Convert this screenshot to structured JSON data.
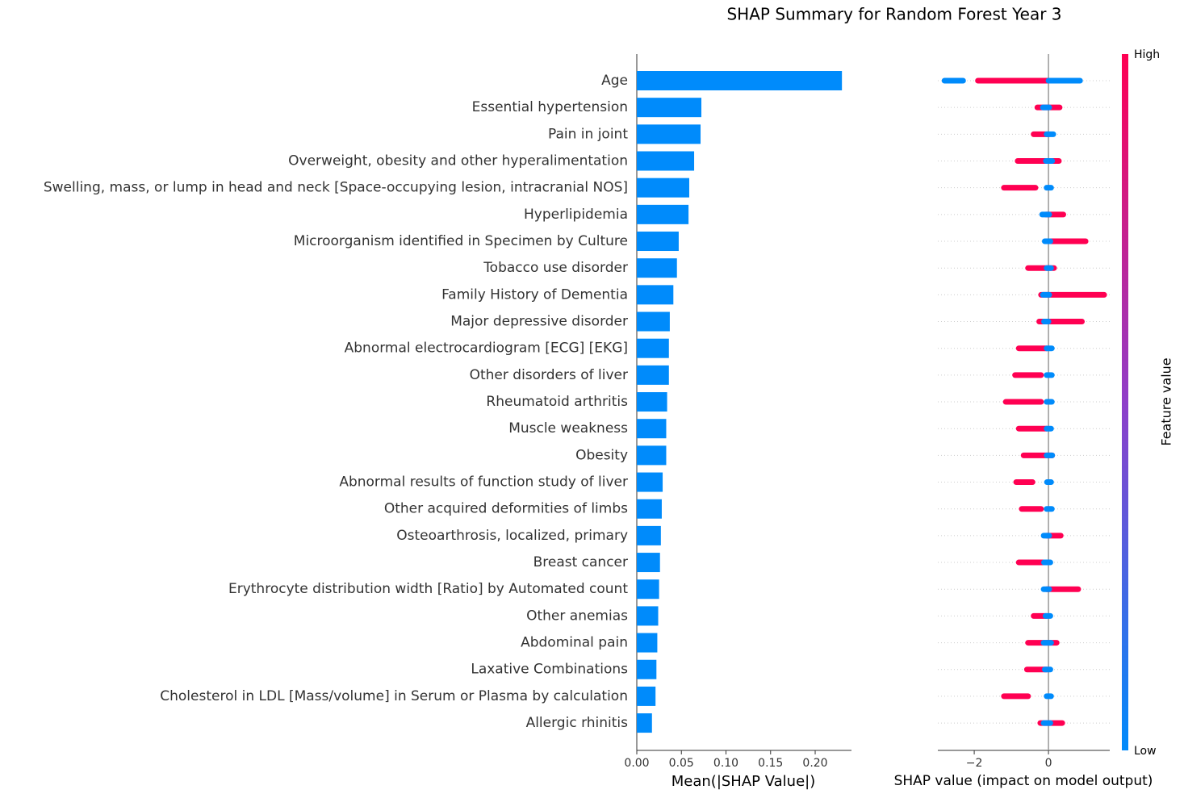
{
  "chart_data": [
    {
      "type": "bar",
      "orientation": "horizontal",
      "title": "SHAP Summary for Random Forest Year 3",
      "xlabel": "Mean(|SHAP Value|)",
      "categories": [
        "Age",
        "Essential hypertension",
        "Pain in joint",
        "Overweight, obesity and other hyperalimentation",
        "Swelling, mass, or lump in head and neck [Space-occupying lesion, intracranial NOS]",
        "Hyperlipidemia",
        "Microorganism identified in Specimen by Culture",
        "Tobacco use disorder",
        "Family History of Dementia",
        "Major depressive disorder",
        "Abnormal electrocardiogram [ECG] [EKG]",
        "Other disorders of liver",
        "Rheumatoid arthritis",
        "Muscle weakness",
        "Obesity",
        "Abnormal results of function study of liver",
        "Other acquired deformities of limbs",
        "Osteoarthrosis, localized, primary",
        "Breast cancer",
        "Erythrocyte distribution width [Ratio] by Automated count",
        "Other anemias",
        "Abdominal pain",
        "Laxative Combinations",
        "Cholesterol in LDL [Mass/volume] in Serum or Plasma by calculation",
        "Allergic rhinitis"
      ],
      "values": [
        0.23,
        0.0724,
        0.0715,
        0.0643,
        0.0588,
        0.058,
        0.047,
        0.045,
        0.041,
        0.037,
        0.036,
        0.036,
        0.034,
        0.033,
        0.033,
        0.029,
        0.028,
        0.027,
        0.026,
        0.025,
        0.024,
        0.023,
        0.022,
        0.021,
        0.017
      ],
      "color": "#008bfb",
      "xlim": [
        0,
        0.2407
      ],
      "xticks": [
        {
          "value": 0,
          "label": "0.00"
        },
        0.05,
        {
          "value": 0.1,
          "label": "0.10"
        },
        0.15,
        {
          "value": 0.2,
          "label": "0.20"
        }
      ]
    },
    {
      "type": "beeswarm",
      "xlabel": "SHAP value (impact on model output)",
      "colorbar_label": "Feature value",
      "xlim": [
        -2.98,
        1.65
      ],
      "xticks": [
        {
          "value": -2,
          "label": "−2"
        },
        0
      ],
      "series": [
        {
          "name": "High",
          "color": "#ff0052",
          "values": [
            [
              [
                -1.9,
                0.35
              ]
            ],
            [
              [
                -0.3,
                0.3
              ]
            ],
            [
              [
                -0.4,
                0
              ]
            ],
            [
              [
                -0.83,
                0.28
              ]
            ],
            [
              [
                -1.2,
                -0.35
              ]
            ],
            [
              [
                -0.07,
                0.4
              ]
            ],
            [
              [
                0,
                1.0
              ]
            ],
            [
              [
                -0.55,
                0.15
              ]
            ],
            [
              [
                -0.2,
                1.5
              ]
            ],
            [
              [
                -0.25,
                0.9
              ]
            ],
            [
              [
                -0.8,
                -0.05
              ]
            ],
            [
              [
                -0.9,
                -0.2
              ]
            ],
            [
              [
                -1.15,
                -0.2
              ]
            ],
            [
              [
                -0.8,
                -0.05
              ]
            ],
            [
              [
                -0.67,
                0.1
              ]
            ],
            [
              [
                -0.87,
                -0.43
              ]
            ],
            [
              [
                -0.72,
                -0.2
              ]
            ],
            [
              [
                -0.05,
                0.33
              ]
            ],
            [
              [
                -0.8,
                -0.15
              ]
            ],
            [
              [
                -0.05,
                0.8
              ]
            ],
            [
              [
                -0.4,
                -0.05
              ]
            ],
            [
              [
                -0.55,
                0.22
              ]
            ],
            [
              [
                -0.58,
                -0.05
              ]
            ],
            [
              [
                -1.2,
                -0.55
              ]
            ],
            [
              [
                -0.22,
                0.37
              ]
            ]
          ]
        },
        {
          "name": "Low",
          "color": "#008bfb",
          "values": [
            [
              [
                -2.8,
                -2.3
              ],
              [
                0,
                0.85
              ]
            ],
            [
              [
                -0.15,
                0.02
              ]
            ],
            [
              [
                -0.05,
                0.13
              ]
            ],
            [
              [
                -0.07,
                0.1
              ]
            ],
            [
              [
                -0.05,
                0.07
              ]
            ],
            [
              [
                -0.17,
                0.02
              ]
            ],
            [
              [
                -0.1,
                0.05
              ]
            ],
            [
              [
                -0.05,
                0.07
              ]
            ],
            [
              [
                -0.15,
                0.02
              ]
            ],
            [
              [
                -0.12,
                0
              ]
            ],
            [
              [
                -0.05,
                0.09
              ]
            ],
            [
              [
                -0.05,
                0.09
              ]
            ],
            [
              [
                -0.05,
                0.09
              ]
            ],
            [
              [
                -0.05,
                0.07
              ]
            ],
            [
              [
                -0.05,
                0.1
              ]
            ],
            [
              [
                -0.04,
                0.07
              ]
            ],
            [
              [
                -0.05,
                0.09
              ]
            ],
            [
              [
                -0.13,
                0.02
              ]
            ],
            [
              [
                -0.12,
                0.05
              ]
            ],
            [
              [
                -0.13,
                0.02
              ]
            ],
            [
              [
                -0.08,
                0.05
              ]
            ],
            [
              [
                -0.13,
                0.07
              ]
            ],
            [
              [
                -0.1,
                0.05
              ]
            ],
            [
              [
                -0.05,
                0.07
              ]
            ],
            [
              [
                -0.13,
                0.05
              ]
            ]
          ]
        }
      ]
    }
  ]
}
